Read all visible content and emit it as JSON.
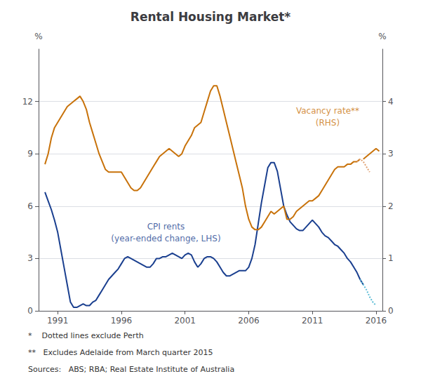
{
  "chart_data": {
    "type": "line",
    "title": "Rental Housing Market*",
    "ylabel": "%",
    "y2label": "%",
    "xlim": [
      1989.5,
      2016.5
    ],
    "xticks": [
      1991,
      1996,
      2001,
      2006,
      2011,
      2016
    ],
    "ylim": [
      0,
      15
    ],
    "yticks": [
      0,
      3,
      6,
      9,
      12
    ],
    "y2lim": [
      0,
      5
    ],
    "y2ticks": [
      0,
      1,
      2,
      3,
      4
    ],
    "grid": true,
    "series": [
      {
        "color": "#1a3f8f",
        "line_style": "solid",
        "axis": "y",
        "x": [
          1990.0,
          1990.25,
          1990.5,
          1990.75,
          1991.0,
          1991.25,
          1991.5,
          1991.75,
          1992.0,
          1992.25,
          1992.5,
          1992.75,
          1993.0,
          1993.25,
          1993.5,
          1993.75,
          1994.0,
          1994.25,
          1994.5,
          1994.75,
          1995.0,
          1995.25,
          1995.5,
          1995.75,
          1996.0,
          1996.25,
          1996.5,
          1996.75,
          1997.0,
          1997.25,
          1997.5,
          1997.75,
          1998.0,
          1998.25,
          1998.5,
          1998.75,
          1999.0,
          1999.25,
          1999.5,
          1999.75,
          2000.0,
          2000.25,
          2000.5,
          2000.75,
          2001.0,
          2001.25,
          2001.5,
          2001.75,
          2002.0,
          2002.25,
          2002.5,
          2002.75,
          2003.0,
          2003.25,
          2003.5,
          2003.75,
          2004.0,
          2004.25,
          2004.5,
          2004.75,
          2005.0,
          2005.25,
          2005.5,
          2005.75,
          2006.0,
          2006.25,
          2006.5,
          2006.75,
          2007.0,
          2007.25,
          2007.5,
          2007.75,
          2008.0,
          2008.25,
          2008.5,
          2008.75,
          2009.0,
          2009.25,
          2009.5,
          2009.75,
          2010.0,
          2010.25,
          2010.5,
          2010.75,
          2011.0,
          2011.25,
          2011.5,
          2011.75,
          2012.0,
          2012.25,
          2012.5,
          2012.75,
          2013.0,
          2013.25,
          2013.5,
          2013.75,
          2014.0,
          2014.25,
          2014.5,
          2014.75,
          2015.0
        ],
        "values": [
          6.8,
          6.3,
          5.8,
          5.2,
          4.5,
          3.5,
          2.5,
          1.5,
          0.5,
          0.2,
          0.2,
          0.3,
          0.4,
          0.3,
          0.3,
          0.5,
          0.6,
          0.9,
          1.2,
          1.5,
          1.8,
          2.0,
          2.2,
          2.4,
          2.7,
          3.0,
          3.1,
          3.0,
          2.9,
          2.8,
          2.7,
          2.6,
          2.5,
          2.5,
          2.7,
          3.0,
          3.0,
          3.1,
          3.1,
          3.2,
          3.3,
          3.2,
          3.1,
          3.0,
          3.2,
          3.3,
          3.2,
          2.8,
          2.5,
          2.7,
          3.0,
          3.1,
          3.1,
          3.0,
          2.8,
          2.5,
          2.2,
          2.0,
          2.0,
          2.1,
          2.2,
          2.3,
          2.3,
          2.3,
          2.5,
          3.0,
          3.8,
          5.0,
          6.2,
          7.2,
          8.2,
          8.5,
          8.5,
          8.0,
          7.0,
          6.0,
          5.5,
          5.1,
          4.9,
          4.7,
          4.6,
          4.6,
          4.8,
          5.0,
          5.2,
          5.0,
          4.8,
          4.5,
          4.3,
          4.2,
          4.0,
          3.8,
          3.7,
          3.5,
          3.3,
          3.0,
          2.8,
          2.5,
          2.2,
          1.8,
          1.5
        ]
      },
      {
        "color": "#5bbcd6",
        "line_style": "dotted",
        "axis": "y",
        "x": [
          2014.75,
          2015.0,
          2015.25,
          2015.5,
          2015.75,
          2016.0
        ],
        "values": [
          1.8,
          1.5,
          1.2,
          0.8,
          0.5,
          0.3
        ]
      },
      {
        "color": "#c8720a",
        "line_style": "solid",
        "axis": "y2",
        "x": [
          1990.0,
          1990.25,
          1990.5,
          1990.75,
          1991.0,
          1991.25,
          1991.5,
          1991.75,
          1992.0,
          1992.25,
          1992.5,
          1992.75,
          1993.0,
          1993.25,
          1993.5,
          1993.75,
          1994.0,
          1994.25,
          1994.5,
          1994.75,
          1995.0,
          1995.25,
          1995.5,
          1995.75,
          1996.0,
          1996.25,
          1996.5,
          1996.75,
          1997.0,
          1997.25,
          1997.5,
          1997.75,
          1998.0,
          1998.25,
          1998.5,
          1998.75,
          1999.0,
          1999.25,
          1999.5,
          1999.75,
          2000.0,
          2000.25,
          2000.5,
          2000.75,
          2001.0,
          2001.25,
          2001.5,
          2001.75,
          2002.0,
          2002.25,
          2002.5,
          2002.75,
          2003.0,
          2003.25,
          2003.5,
          2003.75,
          2004.0,
          2004.25,
          2004.5,
          2004.75,
          2005.0,
          2005.25,
          2005.5,
          2005.75,
          2006.0,
          2006.25,
          2006.5,
          2006.75,
          2007.0,
          2007.25,
          2007.5,
          2007.75,
          2008.0,
          2008.25,
          2008.5,
          2008.75,
          2009.0,
          2009.25,
          2009.5,
          2009.75,
          2010.0,
          2010.25,
          2010.5,
          2010.75,
          2011.0,
          2011.25,
          2011.5,
          2011.75,
          2012.0,
          2012.25,
          2012.5,
          2012.75,
          2013.0,
          2013.25,
          2013.5,
          2013.75,
          2014.0,
          2014.25,
          2014.5,
          2014.75
        ],
        "values": [
          2.8,
          3.0,
          3.3,
          3.5,
          3.6,
          3.7,
          3.8,
          3.9,
          3.95,
          4.0,
          4.05,
          4.1,
          4.0,
          3.85,
          3.6,
          3.4,
          3.2,
          3.0,
          2.85,
          2.7,
          2.65,
          2.65,
          2.65,
          2.65,
          2.65,
          2.55,
          2.45,
          2.35,
          2.3,
          2.3,
          2.35,
          2.45,
          2.55,
          2.65,
          2.75,
          2.85,
          2.95,
          3.0,
          3.05,
          3.1,
          3.05,
          3.0,
          2.95,
          3.0,
          3.15,
          3.25,
          3.35,
          3.5,
          3.55,
          3.6,
          3.8,
          4.0,
          4.2,
          4.3,
          4.3,
          4.1,
          3.85,
          3.6,
          3.35,
          3.1,
          2.85,
          2.6,
          2.35,
          2.0,
          1.75,
          1.6,
          1.55,
          1.55,
          1.6,
          1.7,
          1.8,
          1.9,
          1.85,
          1.9,
          1.95,
          2.0,
          1.75,
          1.75,
          1.8,
          1.9,
          1.95,
          2.0,
          2.05,
          2.1,
          2.1,
          2.15,
          2.2,
          2.3,
          2.4,
          2.5,
          2.6,
          2.7,
          2.75,
          2.75,
          2.75,
          2.8,
          2.8,
          2.85,
          2.85,
          2.9
        ]
      },
      {
        "color": "#e0a070",
        "line_style": "dotted",
        "axis": "y2",
        "x": [
          2014.5,
          2014.75,
          2015.0,
          2015.25,
          2015.5
        ],
        "values": [
          2.85,
          2.9,
          2.85,
          2.75,
          2.65
        ]
      },
      {
        "color": "#c8720a",
        "line_style": "solid",
        "axis": "y2",
        "x": [
          2015.0,
          2015.25,
          2015.5,
          2015.75,
          2016.0,
          2016.25
        ],
        "values": [
          2.9,
          2.95,
          3.0,
          3.05,
          3.1,
          3.05
        ]
      }
    ],
    "annotations": [
      {
        "text": "CPI rents\n(year-ended change, LHS)",
        "x": 1999.5,
        "y": 4.5,
        "axis": "y",
        "color": "#1a3f8f"
      },
      {
        "text": "Vacancy rate**\n(RHS)",
        "x": 2012.2,
        "y": 3.7,
        "axis": "y2",
        "color": "#c8720a"
      }
    ],
    "footnotes": [
      "*    Dotted lines exclude Perth",
      "**   Excludes Adelaide from March quarter 2015",
      "Sources:   ABS; RBA; Real Estate Institute of Australia"
    ]
  }
}
